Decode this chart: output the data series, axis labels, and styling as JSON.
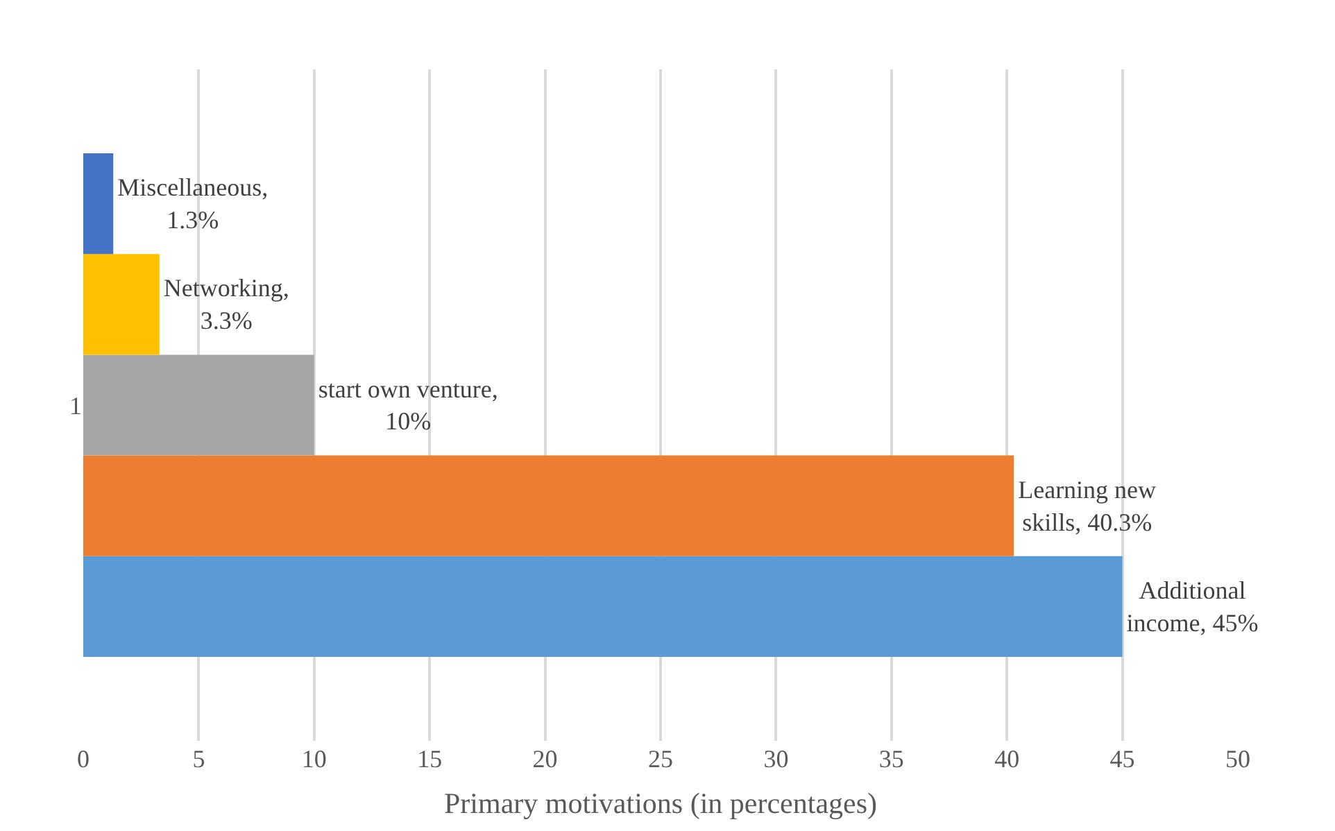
{
  "chart_data": {
    "type": "bar",
    "orientation": "horizontal",
    "categories": [
      "1"
    ],
    "xlabel": "Primary motivations (in percentages)",
    "series": [
      {
        "color": "#5b9bd5",
        "values": [
          45
        ],
        "value_labels": [
          "Additional\nincome, 45%"
        ]
      },
      {
        "color": "#ed7d31",
        "values": [
          40.3
        ],
        "value_labels": [
          "Learning new\nskills, 40.3%"
        ]
      },
      {
        "color": "#a5a5a5",
        "values": [
          10
        ],
        "value_labels": [
          "start own venture,\n10%"
        ]
      },
      {
        "color": "#ffc000",
        "values": [
          3.3
        ],
        "value_labels": [
          "Networking,\n3.3%"
        ]
      },
      {
        "color": "#4472c4",
        "values": [
          1.3
        ],
        "value_labels": [
          "Miscellaneous,\n1.3%"
        ]
      }
    ],
    "xlim": [
      0,
      50
    ],
    "xticks": [
      0,
      5,
      10,
      15,
      20,
      25,
      30,
      35,
      40,
      45,
      50
    ],
    "grid": "x",
    "legend": false
  }
}
